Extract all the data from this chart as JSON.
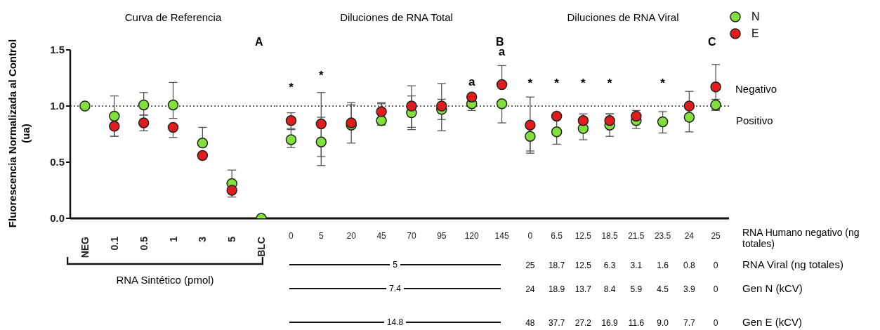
{
  "chart_data": [
    {
      "type": "scatter",
      "title": "Curva de Referencia",
      "ylabel": "Fluorescencia Normalizada al Control (ua)",
      "xlabel": "RNA Sintético (pmol)",
      "categories": [
        "NEG",
        "0.1",
        "0.5",
        "1",
        "3",
        "5",
        "BLC"
      ],
      "ylim": [
        0,
        1.5
      ],
      "yticks": [
        {
          "value": 0,
          "label": "0.0"
        },
        {
          "value": 0.5,
          "label": "0.5"
        },
        {
          "value": 1,
          "label": "1.0"
        },
        {
          "value": 1.5,
          "label": "1.5"
        }
      ],
      "marker": "circle",
      "series": [
        {
          "color": "#82e03c",
          "values": [
            1.0,
            0.91,
            1.01,
            1.01,
            0.67,
            0.31,
            0.0
          ],
          "errors": [
            null,
            [
              0.73,
              1.09
            ],
            [
              0.92,
              1.12
            ],
            [
              0.89,
              1.21
            ],
            [
              0.67,
              0.81
            ],
            [
              0.31,
              0.43
            ],
            null
          ]
        },
        {
          "color": "#e01c1c",
          "values": [
            null,
            0.82,
            0.85,
            0.81,
            0.56,
            0.25,
            null
          ],
          "errors": [
            null,
            [
              0.73,
              0.82
            ],
            [
              0.78,
              0.92
            ],
            [
              0.72,
              0.81
            ],
            [
              0.53,
              0.59
            ],
            [
              0.19,
              0.25
            ],
            null
          ]
        }
      ],
      "ref_lines": [
        {
          "axis": "y",
          "value": 1,
          "line_style": "dotted"
        }
      ],
      "annotations": [
        "A"
      ]
    },
    {
      "type": "scatter",
      "title": "Diluciones de RNA Total",
      "categories": [
        "0",
        "5",
        "20",
        "45",
        "70",
        "95",
        "120",
        "145"
      ],
      "ylim": [
        0,
        1.5
      ],
      "tick_labels": "x",
      "marker": "circle",
      "series": [
        {
          "color": "#82e03c",
          "values": [
            0.7,
            0.68,
            0.83,
            0.87,
            0.94,
            0.97,
            1.02,
            1.02
          ],
          "errors": [
            [
              0.63,
              0.79
            ],
            [
              0.47,
              1.12
            ],
            [
              0.67,
              1.03
            ],
            [
              0.83,
              1.03
            ],
            [
              0.79,
              1.18
            ],
            [
              0.78,
              1.2
            ],
            [
              0.96,
              1.02
            ],
            [
              0.85,
              1.02
            ]
          ]
        },
        {
          "color": "#e01c1c",
          "values": [
            0.87,
            0.84,
            0.85,
            0.95,
            1.0,
            1.0,
            1.08,
            1.19
          ],
          "errors": [
            [
              0.8,
              0.94
            ],
            [
              0.55,
              0.9
            ],
            [
              0.8,
              1.01
            ],
            [
              0.95,
              1.02
            ],
            [
              0.81,
              1.09
            ],
            [
              0.88,
              1.06
            ],
            [
              1.04,
              1.1
            ],
            [
              1.19,
              1.36
            ]
          ]
        }
      ],
      "ref_lines": [
        {
          "axis": "y",
          "value": 1,
          "line_style": "dotted"
        }
      ],
      "annotations": [
        "B",
        "5",
        "7.4",
        "14.8",
        "*",
        "*",
        "a",
        "a"
      ]
    },
    {
      "type": "scatter",
      "title": "Diluciones de RNA Viral",
      "categories": [
        "0",
        "6.5",
        "12.5",
        "18.5",
        "21.5",
        "23.5",
        "24",
        "25"
      ],
      "ylim": [
        0,
        1.5
      ],
      "tick_labels": "x",
      "marker": "circle",
      "legend": "top right",
      "series": [
        {
          "name": "N",
          "color": "#82e03c",
          "values": [
            0.73,
            0.77,
            0.8,
            0.83,
            0.87,
            0.86,
            0.9,
            1.01
          ],
          "errors": [
            [
              0.58,
              1.08
            ],
            [
              0.66,
              0.88
            ],
            [
              0.7,
              0.9
            ],
            [
              0.73,
              0.93
            ],
            [
              0.8,
              0.94
            ],
            [
              0.76,
              0.95
            ],
            [
              0.77,
              1.03
            ],
            [
              0.96,
              1.06
            ]
          ]
        },
        {
          "name": "E",
          "color": "#e01c1c",
          "values": [
            0.83,
            0.91,
            0.87,
            0.87,
            0.91,
            null,
            1.0,
            1.17
          ],
          "errors": [
            [
              0.6,
              0.83
            ],
            null,
            [
              0.82,
              0.93
            ],
            [
              0.81,
              0.93
            ],
            [
              0.87,
              0.96
            ],
            null,
            [
              0.87,
              1.13
            ],
            [
              0.97,
              1.37
            ]
          ]
        }
      ],
      "ref_lines": [
        {
          "axis": "y",
          "value": 1,
          "line_style": "dotted"
        }
      ],
      "annotations": [
        "C",
        "Negativo",
        "Positivo",
        "RNA Humano negativo (ng totales)",
        "RNA Viral (ng totales)",
        "25",
        "18.7",
        "12.5",
        "6.3",
        "3.1",
        "1.6",
        "0.8",
        "0",
        "Gen N (kCV)",
        "24",
        "18.9",
        "13.7",
        "8.4",
        "5.9",
        "4.5",
        "3.9",
        "0",
        "Gen E (kCV)",
        "48",
        "37.7",
        "27.2",
        "16.9",
        "11.6",
        "9.0",
        "7.7",
        "0",
        "*",
        "*",
        "*",
        "*",
        "*"
      ]
    }
  ]
}
